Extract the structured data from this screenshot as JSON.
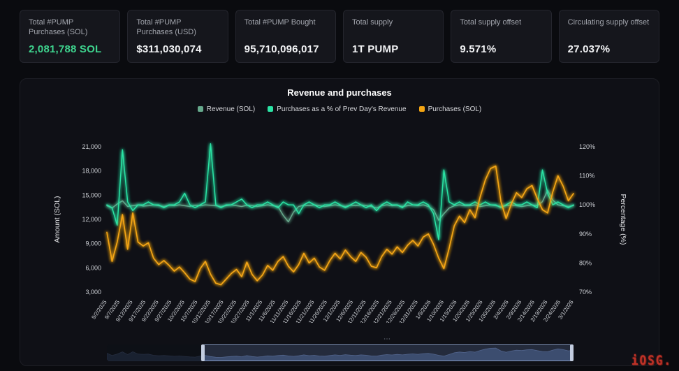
{
  "stats": [
    {
      "label": "Total #PUMP Purchases (SOL)",
      "value": "2,081,788 SOL",
      "accent": true
    },
    {
      "label": "Total #PUMP Purchases (USD)",
      "value": "$311,030,074",
      "accent": false
    },
    {
      "label": "Total #PUMP Bought",
      "value": "95,710,096,017",
      "accent": false
    },
    {
      "label": "Total supply",
      "value": "1T PUMP",
      "accent": false
    },
    {
      "label": "Total supply offset",
      "value": "9.571%",
      "accent": false
    },
    {
      "label": "Circulating supply offset",
      "value": "27.037%",
      "accent": false
    }
  ],
  "watermark": {
    "text": "iOSG."
  },
  "minimap": {
    "selection_start_pct": 20.5,
    "selection_end_pct": 99.7
  },
  "chart_data": {
    "type": "line",
    "title": "Revenue and purchases",
    "ylabel_left": "Amount (SOL)",
    "ylabel_right": "Percentage (%)",
    "ylim_left": [
      3000,
      21000
    ],
    "ylim_right": [
      70,
      120
    ],
    "grid": false,
    "legend_position": "top",
    "y_left_ticks": {
      "values": [
        3000,
        6000,
        9000,
        12000,
        15000,
        18000,
        21000
      ],
      "labels": [
        "3,000",
        "6,000",
        "9,000",
        "12,000",
        "15,000",
        "18,000",
        "21,000"
      ]
    },
    "y_right_ticks": {
      "values": [
        70,
        80,
        90,
        100,
        110,
        120
      ],
      "labels": [
        "70%",
        "80%",
        "90%",
        "100%",
        "110%",
        "120%"
      ]
    },
    "x_tick_labels": [
      "9/2/2025",
      "9/7/2025",
      "9/12/2025",
      "9/17/2025",
      "9/22/2025",
      "9/27/2025",
      "10/2/2025",
      "10/7/2025",
      "10/12/2025",
      "10/17/2025",
      "10/22/2025",
      "10/27/2025",
      "11/1/2025",
      "11/6/2025",
      "11/11/2025",
      "11/16/2025",
      "11/21/2025",
      "11/26/2025",
      "12/1/2025",
      "12/6/2025",
      "12/11/2025",
      "12/16/2025",
      "12/21/2025",
      "12/26/2025",
      "12/31/2025",
      "1/5/2026",
      "1/10/2026",
      "1/15/2026",
      "1/20/2026",
      "1/25/2026",
      "1/30/2026",
      "2/4/2026",
      "2/9/2026",
      "2/14/2026",
      "2/19/2026",
      "2/24/2026",
      "3/1/2026"
    ],
    "dates": [
      "9/2/2025",
      "9/4/2025",
      "9/6/2025",
      "9/8/2025",
      "9/10/2025",
      "9/12/2025",
      "9/14/2025",
      "9/16/2025",
      "9/18/2025",
      "9/20/2025",
      "9/22/2025",
      "9/24/2025",
      "9/26/2025",
      "9/28/2025",
      "9/30/2025",
      "10/2/2025",
      "10/4/2025",
      "10/6/2025",
      "10/8/2025",
      "10/10/2025",
      "10/12/2025",
      "10/14/2025",
      "10/16/2025",
      "10/18/2025",
      "10/20/2025",
      "10/22/2025",
      "10/24/2025",
      "10/26/2025",
      "10/28/2025",
      "10/30/2025",
      "11/1/2025",
      "11/3/2025",
      "11/5/2025",
      "11/7/2025",
      "11/9/2025",
      "11/11/2025",
      "11/13/2025",
      "11/15/2025",
      "11/17/2025",
      "11/19/2025",
      "11/21/2025",
      "11/23/2025",
      "11/25/2025",
      "11/27/2025",
      "11/29/2025",
      "12/1/2025",
      "12/3/2025",
      "12/5/2025",
      "12/7/2025",
      "12/9/2025",
      "12/11/2025",
      "12/13/2025",
      "12/15/2025",
      "12/17/2025",
      "12/19/2025",
      "12/21/2025",
      "12/23/2025",
      "12/25/2025",
      "12/27/2025",
      "12/29/2025",
      "12/31/2025",
      "1/2/2026",
      "1/4/2026",
      "1/6/2026",
      "1/8/2026",
      "1/10/2026",
      "1/12/2026",
      "1/14/2026",
      "1/16/2026",
      "1/18/2026",
      "1/20/2026",
      "1/22/2026",
      "1/24/2026",
      "1/26/2026",
      "1/28/2026",
      "1/30/2026",
      "2/1/2026",
      "2/3/2026",
      "2/5/2026",
      "2/7/2026",
      "2/9/2026",
      "2/11/2026",
      "2/13/2026",
      "2/15/2026",
      "2/17/2026",
      "2/19/2026",
      "2/21/2026",
      "2/23/2026",
      "2/25/2026",
      "2/27/2026",
      "3/1/2026"
    ],
    "series": [
      {
        "name": "Revenue (SOL)",
        "axis": "left",
        "color": "#66a98c",
        "width": 1.5,
        "values": [
          13700,
          13400,
          13900,
          14300,
          13600,
          13700,
          13800,
          13650,
          13700,
          13800,
          13700,
          13600,
          13750,
          13700,
          13800,
          13700,
          13600,
          13750,
          13700,
          13800,
          13750,
          13700,
          13600,
          13700,
          13800,
          13700,
          13600,
          13750,
          13700,
          13600,
          13700,
          13800,
          13700,
          13600,
          12500,
          11700,
          12900,
          13600,
          13750,
          13700,
          13800,
          13700,
          13600,
          13700,
          13800,
          13700,
          13600,
          13750,
          13700,
          13800,
          13700,
          13600,
          13400,
          13700,
          13800,
          13700,
          13750,
          13600,
          13700,
          13800,
          13700,
          13800,
          13600,
          13200,
          11900,
          12700,
          13400,
          13700,
          13800,
          13700,
          13700,
          13800,
          13600,
          13700,
          13800,
          13700,
          13600,
          13700,
          13800,
          13700,
          13600,
          13700,
          13800,
          13700,
          14200,
          15600,
          14400,
          13800,
          13700,
          13600,
          13700
        ]
      },
      {
        "name": "Purchases as a % of Prev Day's Revenue",
        "axis": "right",
        "color": "#2be3a4",
        "width": 1.5,
        "values": [
          100,
          99,
          93,
          119,
          101,
          98,
          100,
          100,
          101,
          100,
          100,
          99,
          100,
          100,
          101,
          104,
          100,
          99,
          100,
          101,
          121,
          100,
          99,
          100,
          100,
          101,
          102,
          100,
          99,
          100,
          100,
          101,
          100,
          99,
          101,
          100,
          100,
          97,
          100,
          101,
          100,
          99,
          100,
          100,
          101,
          100,
          99,
          100,
          101,
          100,
          99,
          100,
          98,
          100,
          101,
          100,
          100,
          99,
          101,
          100,
          100,
          101,
          100,
          97,
          88,
          112,
          101,
          100,
          101,
          100,
          100,
          101,
          100,
          101,
          100,
          100,
          99,
          100,
          101,
          100,
          100,
          101,
          100,
          99,
          112,
          104,
          100,
          101,
          100,
          99,
          100
        ]
      },
      {
        "name": "Purchases (SOL)",
        "axis": "left",
        "color": "#f4a513",
        "width": 1.7,
        "values": [
          10400,
          6800,
          9200,
          12600,
          8300,
          12800,
          9200,
          8700,
          9100,
          7200,
          6400,
          6900,
          6300,
          5600,
          6100,
          5400,
          4600,
          4300,
          5900,
          6800,
          5200,
          4100,
          3900,
          4600,
          5300,
          5800,
          4900,
          6700,
          5200,
          4400,
          5100,
          6300,
          5700,
          6800,
          7400,
          6200,
          5500,
          6400,
          7800,
          6600,
          7200,
          6100,
          5700,
          6900,
          7800,
          7100,
          8200,
          7400,
          6800,
          7900,
          7300,
          6200,
          6000,
          7400,
          8300,
          7700,
          8600,
          7900,
          8800,
          9400,
          8700,
          9800,
          10200,
          8900,
          7200,
          5900,
          8400,
          11200,
          12400,
          11600,
          13200,
          12200,
          14800,
          16900,
          18300,
          18600,
          14200,
          12100,
          13900,
          15300,
          14700,
          15800,
          16200,
          14600,
          13200,
          12800,
          15400,
          17400,
          16100,
          14300,
          15200
        ]
      }
    ]
  }
}
